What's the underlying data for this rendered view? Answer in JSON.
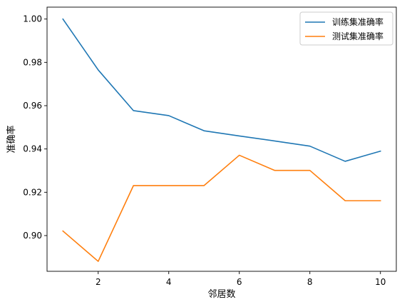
{
  "chart_data": {
    "type": "line",
    "title": "",
    "xlabel": "邻居数",
    "ylabel": "准确率",
    "x": [
      1,
      2,
      3,
      4,
      5,
      6,
      7,
      8,
      9,
      10
    ],
    "xticks": [
      "2",
      "4",
      "6",
      "8",
      "10"
    ],
    "xtick_values": [
      2,
      4,
      6,
      8,
      10
    ],
    "yticks": [
      "0.90",
      "0.92",
      "0.94",
      "0.96",
      "0.98",
      "1.00"
    ],
    "ytick_values": [
      0.9,
      0.92,
      0.94,
      0.96,
      0.98,
      1.0
    ],
    "xlim": [
      0.55,
      10.45
    ],
    "ylim": [
      0.8835,
      1.0055
    ],
    "grid": false,
    "legend_position": "top-right",
    "series": [
      {
        "name": "训练集准确率",
        "color": "#1f77b4",
        "values": [
          1.0,
          0.9765,
          0.9577,
          0.9554,
          0.9484,
          0.946,
          0.9437,
          0.9413,
          0.9343,
          0.939
        ]
      },
      {
        "name": "测试集准确率",
        "color": "#ff7f0e",
        "values": [
          0.9021,
          0.8881,
          0.9231,
          0.9231,
          0.9231,
          0.9371,
          0.9301,
          0.9301,
          0.9161,
          0.9161
        ]
      }
    ]
  }
}
